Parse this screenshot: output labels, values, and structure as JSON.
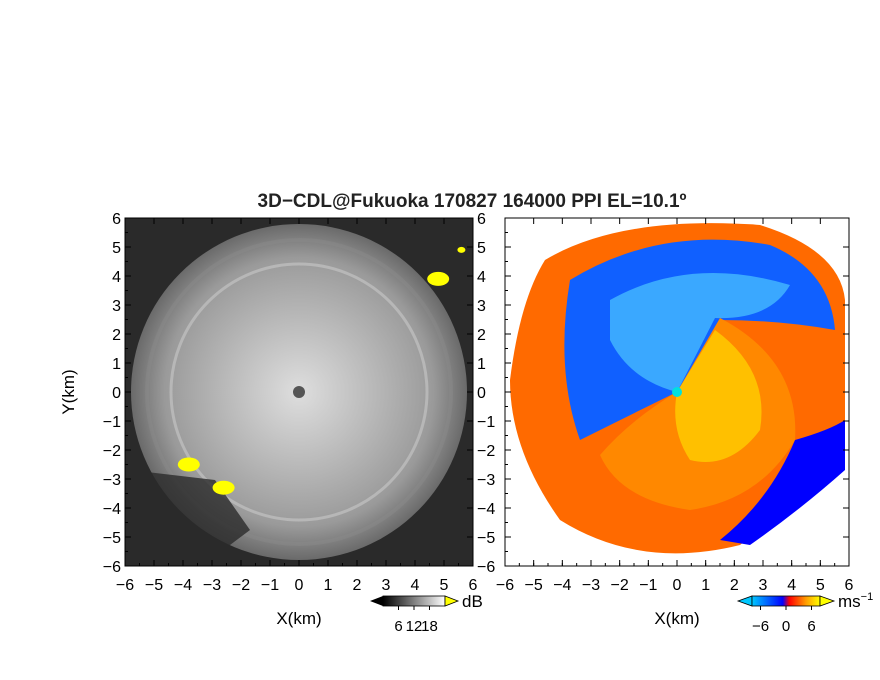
{
  "chart_data": {
    "title": "3D−CDL@Fukuoka 170827 164000 PPI EL=10.1º",
    "panels": [
      {
        "type": "heatmap",
        "name": "reflectivity",
        "xlabel": "X(km)",
        "ylabel": "Y(km)",
        "xlim": [
          -6,
          6
        ],
        "ylim": [
          -6,
          6
        ],
        "xticks": [
          "−6",
          "−5",
          "−4",
          "−3",
          "−2",
          "−1",
          "0",
          "1",
          "2",
          "3",
          "4",
          "5",
          "6"
        ],
        "yticks": [
          "−6",
          "−5",
          "−4",
          "−3",
          "−2",
          "−1",
          "0",
          "1",
          "2",
          "3",
          "4",
          "5",
          "6"
        ],
        "background": "#2a2a2a",
        "colorbar": {
          "unit": "dB",
          "ticks": [
            "6",
            "12",
            "18"
          ],
          "tick_values": [
            6,
            12,
            18
          ],
          "range": [
            0,
            24
          ],
          "colors": [
            "#000000",
            "#ffffff"
          ],
          "over_color": "#ffff00"
        },
        "highlights": [
          {
            "x": 4.8,
            "y": 3.9,
            "color": "#ffff00"
          },
          {
            "x": -3.8,
            "y": -2.5,
            "color": "#ffff00"
          },
          {
            "x": -2.6,
            "y": -3.3,
            "color": "#ffff00"
          },
          {
            "x": 5.6,
            "y": 4.9,
            "color": "#ffff00"
          }
        ],
        "radar_center": {
          "x": 0,
          "y": 0
        }
      },
      {
        "type": "heatmap",
        "name": "doppler-velocity",
        "xlabel": "X(km)",
        "xlim": [
          -6,
          6
        ],
        "ylim": [
          -6,
          6
        ],
        "xticks": [
          "−6",
          "−5",
          "−4",
          "−3",
          "−2",
          "−1",
          "0",
          "1",
          "2",
          "3",
          "4",
          "5",
          "6"
        ],
        "yticks": [
          "−6",
          "−5",
          "−4",
          "−3",
          "−2",
          "−1",
          "0",
          "1",
          "2",
          "3",
          "4",
          "5",
          "6"
        ],
        "background": "#ffffff",
        "colorbar": {
          "unit": "ms",
          "unit_exp": "−1",
          "ticks": [
            "−6",
            "0",
            "6"
          ],
          "tick_values": [
            -6,
            0,
            6
          ],
          "range": [
            -8,
            8
          ],
          "colors": [
            "#00c8ff",
            "#0000ff",
            "#ff0000",
            "#ffa000",
            "#ffff00"
          ]
        },
        "radar_center": {
          "x": 0,
          "y": 0
        }
      }
    ]
  }
}
